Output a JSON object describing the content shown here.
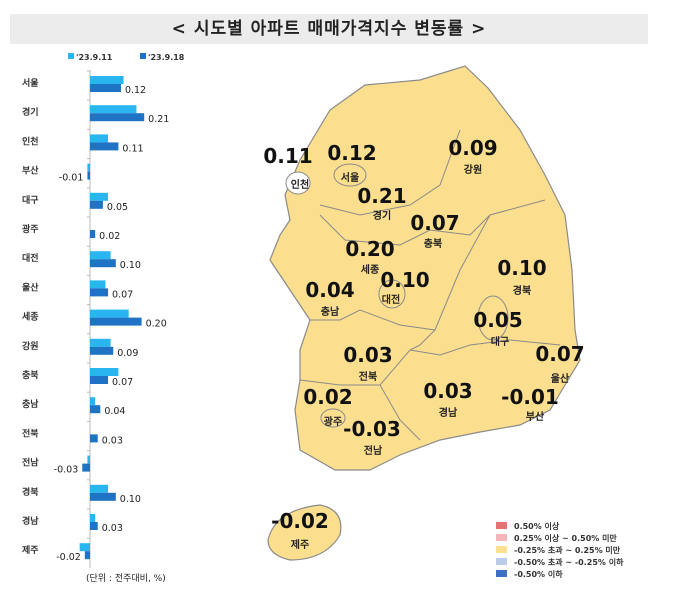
{
  "title": "< 시도별 아파트 매매가격지수 변동률 >",
  "colors": {
    "prev": "#29b6f0",
    "curr": "#1f73c4",
    "map_fill": "#fbdf8f",
    "map_border": "#8a8a8a"
  },
  "chart_data": [
    {
      "type": "bar",
      "orientation": "horizontal",
      "categories": [
        "서울",
        "경기",
        "인천",
        "부산",
        "대구",
        "광주",
        "대전",
        "울산",
        "세종",
        "강원",
        "충북",
        "충남",
        "전북",
        "전남",
        "경북",
        "경남",
        "제주"
      ],
      "series": [
        {
          "name": "'23.9.11",
          "values": [
            0.13,
            0.18,
            0.07,
            -0.01,
            0.07,
            0.0,
            0.08,
            0.06,
            0.15,
            0.08,
            0.11,
            0.02,
            0.0,
            -0.01,
            0.07,
            0.02,
            -0.04
          ]
        },
        {
          "name": "'23.9.18",
          "values": [
            0.12,
            0.21,
            0.11,
            -0.01,
            0.05,
            0.02,
            0.1,
            0.07,
            0.2,
            0.09,
            0.07,
            0.04,
            0.03,
            -0.03,
            0.1,
            0.03,
            -0.02
          ]
        }
      ],
      "data_labels": [
        "0.12",
        "0.21",
        "0.11",
        "-0.01",
        "0.05",
        "0.02",
        "0.10",
        "0.07",
        "0.20",
        "0.09",
        "0.07",
        "0.04",
        "0.03",
        "-0.03",
        "0.10",
        "0.03",
        "-0.02"
      ],
      "legend_placement": "top",
      "note": "(단위 : 전주대비, %)"
    },
    {
      "type": "map",
      "regions": [
        {
          "name": "인천",
          "value": "0.11"
        },
        {
          "name": "서울",
          "value": "0.12"
        },
        {
          "name": "경기",
          "value": "0.21"
        },
        {
          "name": "강원",
          "value": "0.09"
        },
        {
          "name": "충북",
          "value": "0.07"
        },
        {
          "name": "세종",
          "value": "0.20"
        },
        {
          "name": "대전",
          "value": "0.10"
        },
        {
          "name": "충남",
          "value": "0.04"
        },
        {
          "name": "경북",
          "value": "0.10"
        },
        {
          "name": "대구",
          "value": "0.05"
        },
        {
          "name": "울산",
          "value": "0.07"
        },
        {
          "name": "전북",
          "value": "0.03"
        },
        {
          "name": "광주",
          "value": "0.02"
        },
        {
          "name": "전남",
          "value": "-0.03"
        },
        {
          "name": "경남",
          "value": "0.03"
        },
        {
          "name": "부산",
          "value": "-0.01"
        },
        {
          "name": "제주",
          "value": "-0.02"
        }
      ],
      "legend": [
        {
          "label": "0.50% 이상",
          "color": "#e57373"
        },
        {
          "label": "0.25% 이상 ~ 0.50% 미만",
          "color": "#f4b6bb"
        },
        {
          "label": "-0.25% 초과 ~ 0.25% 미만",
          "color": "#fbe08f"
        },
        {
          "label": "-0.50% 초과 ~ -0.25% 이하",
          "color": "#b9cdea"
        },
        {
          "label": "-0.50% 이하",
          "color": "#3d6fc4"
        }
      ]
    }
  ]
}
